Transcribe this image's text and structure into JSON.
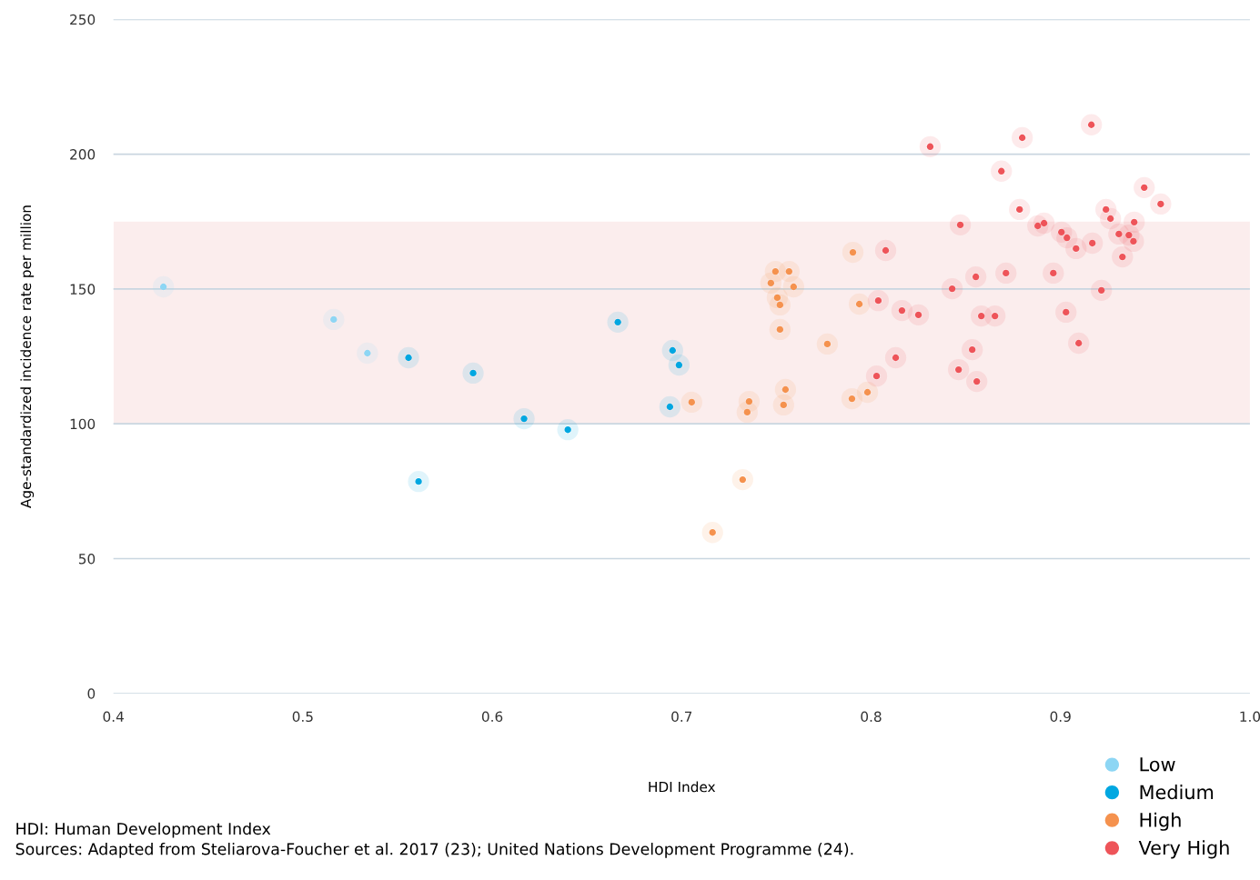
{
  "chart_data": {
    "type": "scatter",
    "xlabel": "HDI Index",
    "ylabel": "Age-standardized incidence rate per million",
    "xlim": [
      0.4,
      1.0
    ],
    "xticks": [
      0.4,
      0.5,
      0.6,
      0.7,
      0.8,
      0.9,
      {
        "value": 1.0,
        "label": "1.0"
      }
    ],
    "ylim": [
      0,
      250
    ],
    "yticks": [
      0,
      50,
      100,
      150,
      200,
      250
    ],
    "grid": "y",
    "legend": "bottom right",
    "marker": "circle",
    "bands": [
      {
        "axis": "y",
        "from": 100,
        "to": 175,
        "color": "#fbeded"
      }
    ],
    "series": [
      {
        "name": "Low",
        "color": "#8dd6f4",
        "x": [
          0.4264,
          0.5163,
          0.5341
        ],
        "values": [
          150.8,
          138.7,
          126.2
        ]
      },
      {
        "name": "Medium",
        "color": "#00a7e1",
        "x": [
          0.5558,
          0.5899,
          0.5611,
          0.6168,
          0.6399,
          0.6663,
          0.6952,
          0.6986,
          0.6938
        ],
        "values": [
          124.5,
          118.8,
          78.6,
          101.9,
          97.8,
          137.7,
          127.2,
          121.8,
          106.3
        ]
      },
      {
        "name": "High",
        "color": "#f5924e",
        "x": [
          0.7053,
          0.7356,
          0.7346,
          0.7548,
          0.7538,
          0.7322,
          0.7163,
          0.7495,
          0.7567,
          0.7471,
          0.7591,
          0.7505,
          0.7519,
          0.7519,
          0.7769,
          0.7904,
          0.7938,
          0.7899,
          0.7981
        ],
        "values": [
          108.0,
          108.3,
          104.3,
          112.7,
          107.0,
          79.3,
          59.7,
          156.5,
          156.5,
          152.2,
          150.8,
          146.8,
          144.1,
          135.0,
          129.6,
          163.6,
          144.4,
          109.3,
          111.7
        ]
      },
      {
        "name": "Very High",
        "color": "#ee5459",
        "x": [
          0.8077,
          0.8038,
          0.8163,
          0.825,
          0.813,
          0.8029,
          0.8312,
          0.8471,
          0.8428,
          0.8553,
          0.8712,
          0.8582,
          0.8654,
          0.8534,
          0.8462,
          0.8558,
          0.8688,
          0.8798,
          0.9163,
          0.8784,
          0.888,
          0.8913,
          0.9005,
          0.9034,
          0.9082,
          0.8962,
          0.9029,
          0.9096,
          0.9216,
          0.924,
          0.9264,
          0.9168,
          0.9308,
          0.9361,
          0.9385,
          0.9389,
          0.9327,
          0.9442,
          0.9529
        ],
        "values": [
          164.3,
          145.7,
          142.0,
          140.4,
          124.5,
          117.7,
          202.8,
          173.8,
          150.1,
          154.5,
          155.9,
          140.0,
          140.0,
          127.5,
          120.1,
          115.7,
          193.7,
          206.1,
          210.9,
          179.5,
          173.4,
          174.4,
          171.1,
          169.0,
          165.0,
          155.9,
          141.4,
          129.9,
          149.5,
          179.5,
          176.1,
          167.0,
          170.4,
          170.0,
          167.7,
          174.8,
          161.9,
          187.6,
          181.5
        ]
      }
    ],
    "annotations": [
      "HDI: Human Development Index",
      "Sources: Adapted from Steliarova-Foucher et al. 2017 (23); United Nations Development Programme (24)."
    ]
  }
}
